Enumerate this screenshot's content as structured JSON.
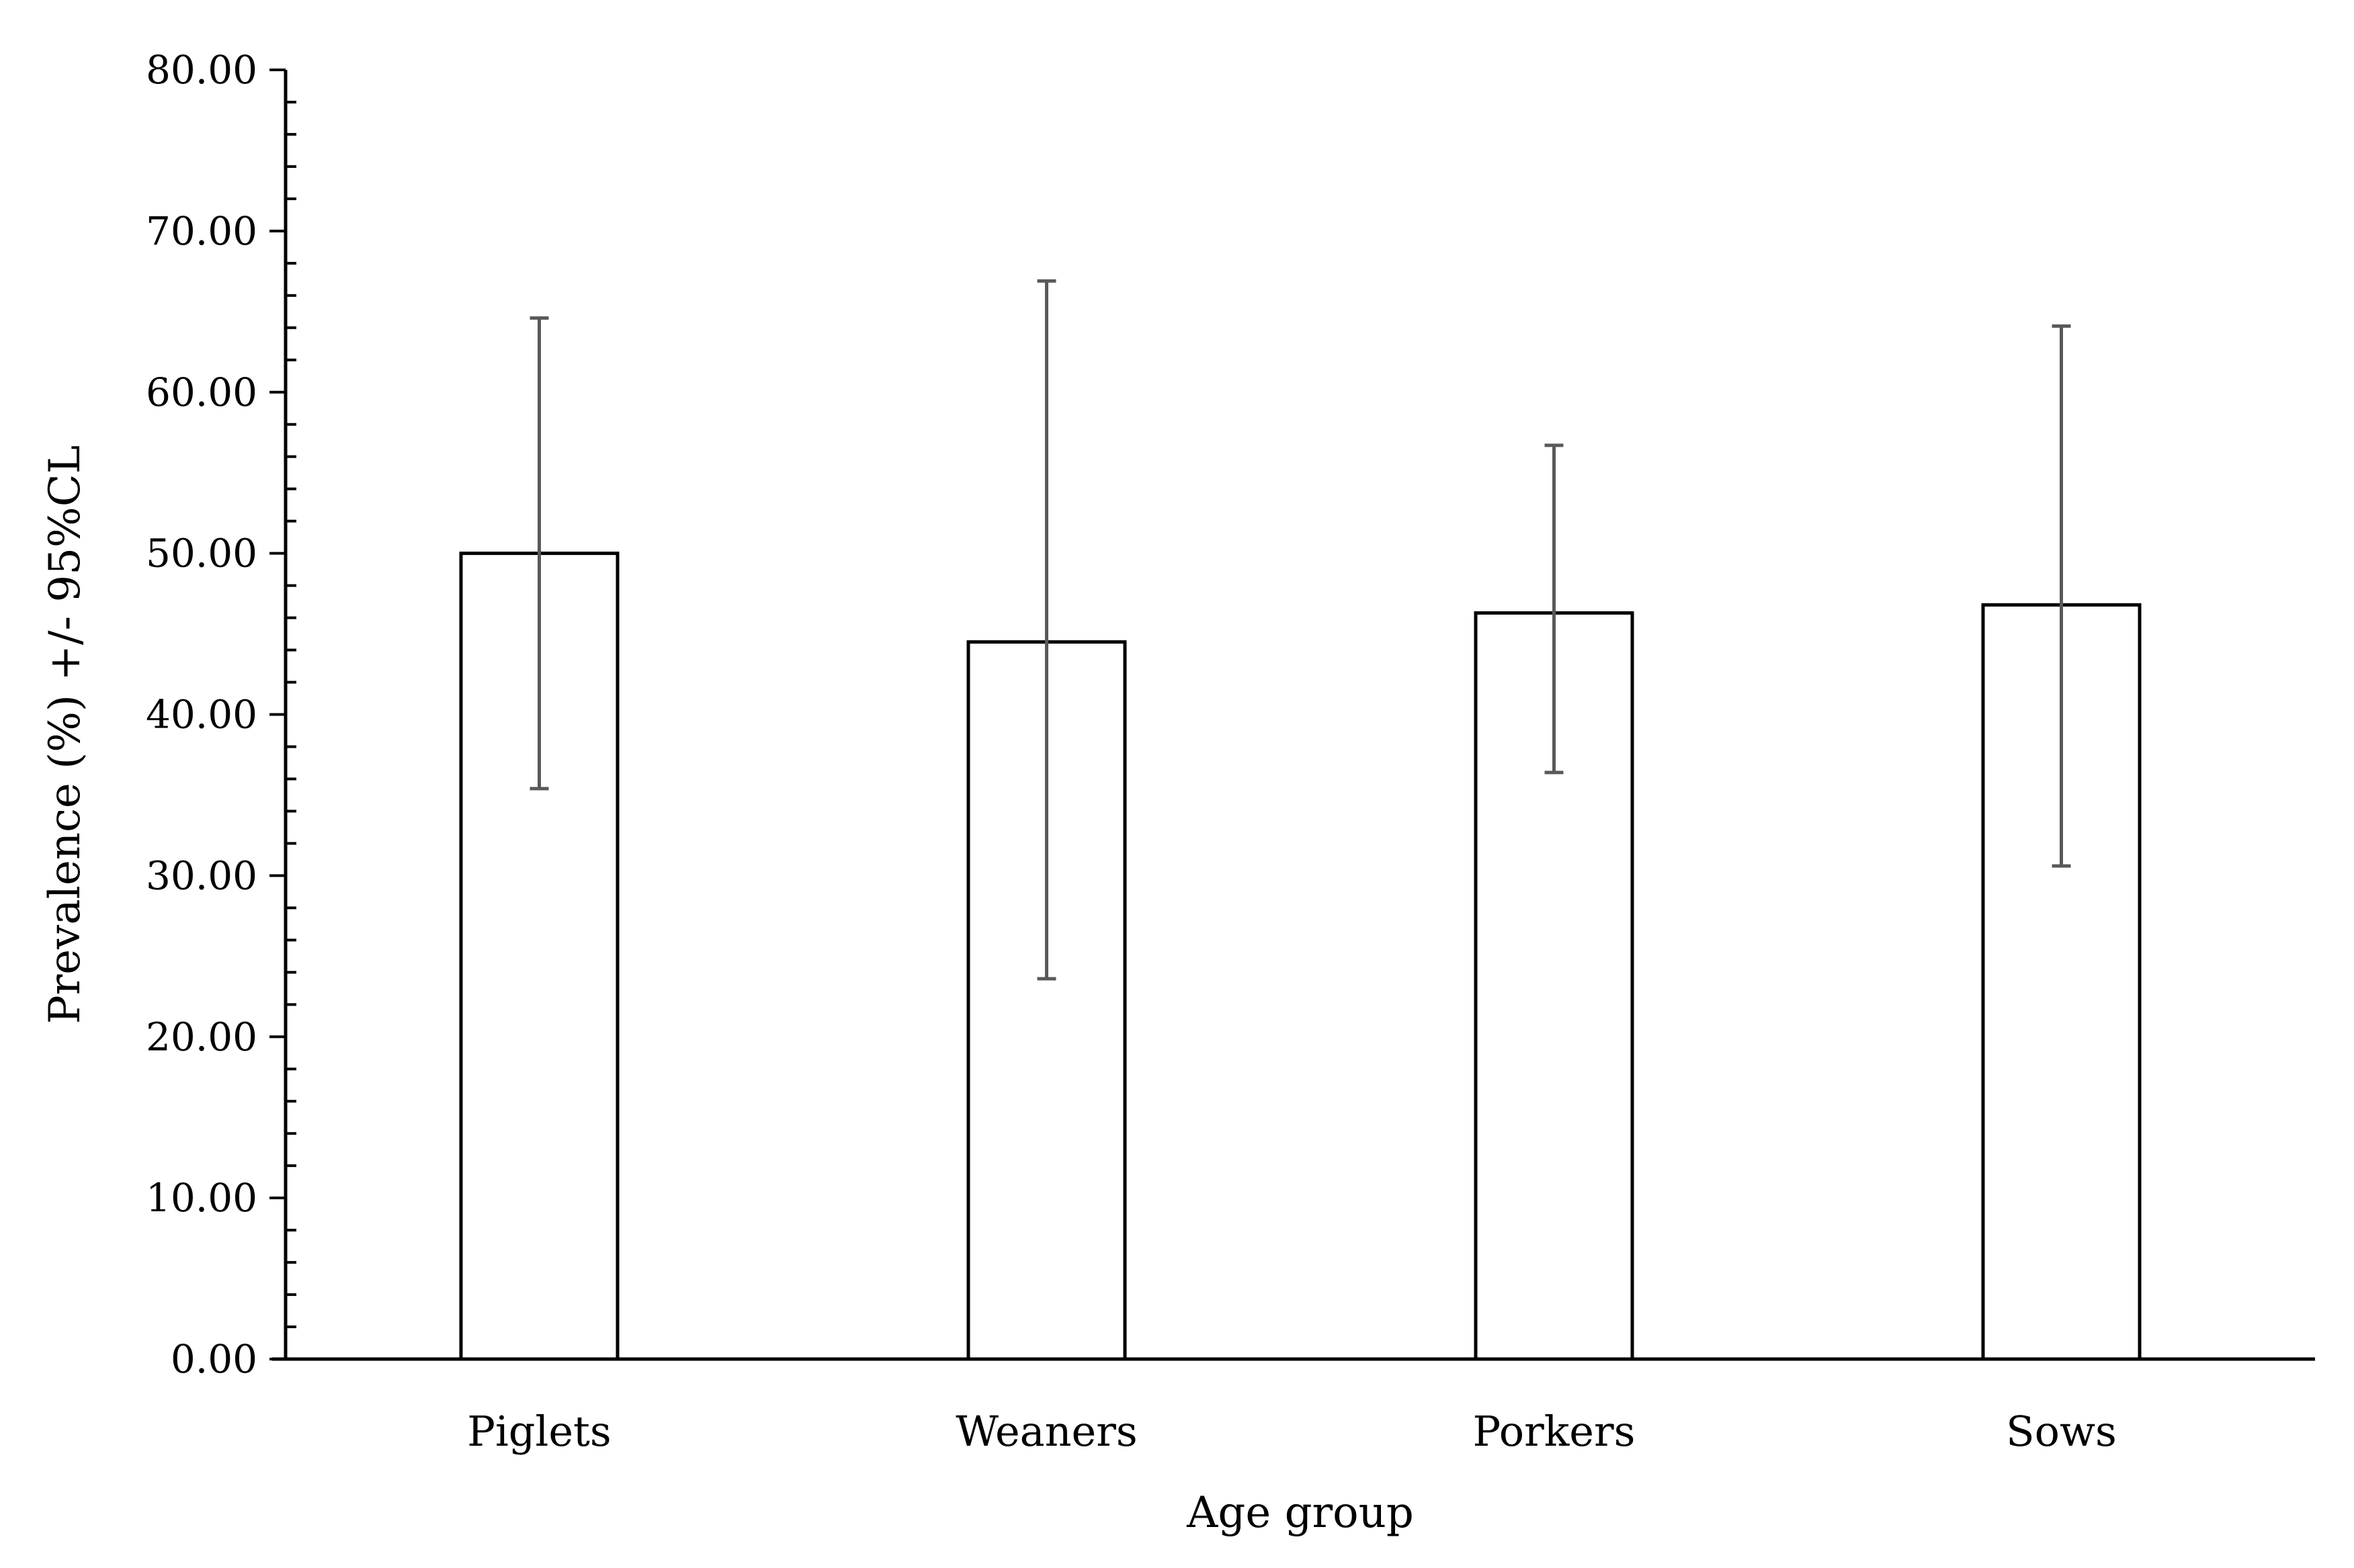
{
  "chart_data": {
    "type": "bar",
    "categories": [
      "Piglets",
      "Weaners",
      "Porkers",
      "Sows"
    ],
    "values": [
      50.0,
      44.5,
      46.3,
      46.8
    ],
    "error_bars": {
      "lower": [
        35.4,
        23.6,
        36.4,
        30.6
      ],
      "upper": [
        64.6,
        66.9,
        56.7,
        64.1
      ]
    },
    "title": "",
    "xlabel": "Age group",
    "ylabel": "Prevalence (%) +/- 95%CL",
    "ylim": [
      0,
      80
    ],
    "yticks": [
      "0.00",
      "10.00",
      "20.00",
      "30.00",
      "40.00",
      "50.00",
      "60.00",
      "70.00",
      "80.00"
    ],
    "grid": false,
    "legend": "none",
    "colors": {
      "bar_fill": "#ffffff",
      "bar_stroke": "#000000",
      "error_bar": "#595959",
      "axis": "#000000"
    }
  }
}
